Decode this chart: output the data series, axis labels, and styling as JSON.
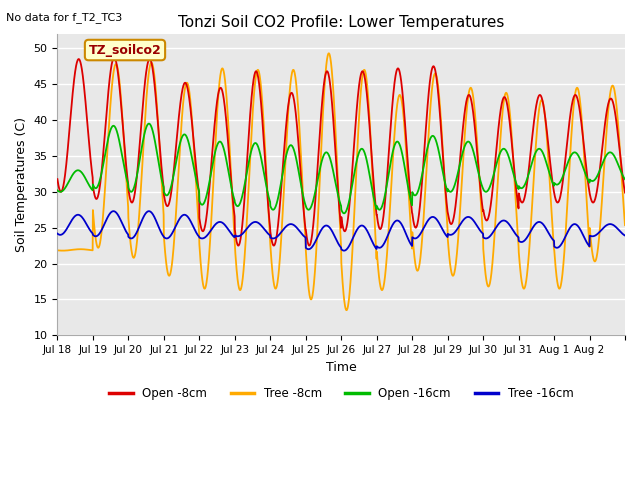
{
  "title": "Tonzi Soil CO2 Profile: Lower Temperatures",
  "subtitle": "No data for f_T2_TC3",
  "xlabel": "Time",
  "ylabel": "Soil Temperatures (C)",
  "ylim": [
    10,
    52
  ],
  "yticks": [
    10,
    15,
    20,
    25,
    30,
    35,
    40,
    45,
    50
  ],
  "legend_label": "TZ_soilco2",
  "series_labels": [
    "Open -8cm",
    "Tree -8cm",
    "Open -16cm",
    "Tree -16cm"
  ],
  "series_colors": [
    "#dd0000",
    "#ffaa00",
    "#00bb00",
    "#0000cc"
  ],
  "bg_color": "#ffffff",
  "plot_bg_color": "#e8e8e8",
  "grid_color": "#ffffff",
  "n_days": 16,
  "xtick_labels": [
    "Jul 18",
    "Jul 19",
    "Jul 20",
    "Jul 21",
    "Jul 22",
    "Jul 23",
    "Jul 24",
    "Jul 25",
    "Jul 26",
    "Jul 27",
    "Jul 28",
    "Jul 29",
    "Jul 30",
    "Jul 31",
    "Aug 1",
    "Aug 2"
  ],
  "open8_peaks": [
    48.5,
    48.7,
    48.5,
    45.2,
    44.5,
    46.8,
    43.8,
    46.8,
    46.8,
    47.2,
    47.5,
    43.5,
    43.2,
    43.5,
    43.5,
    43.0
  ],
  "open8_troughs": [
    30.0,
    29.0,
    28.5,
    28.0,
    24.5,
    22.5,
    22.5,
    22.5,
    24.5,
    24.8,
    25.0,
    25.5,
    26.0,
    28.5,
    28.5,
    28.5
  ],
  "tree8_peaks": [
    22.0,
    47.8,
    48.0,
    45.2,
    47.2,
    47.0,
    47.0,
    49.3,
    47.0,
    43.5,
    46.5,
    44.5,
    43.8,
    42.8,
    44.5,
    44.8
  ],
  "tree8_troughs": [
    21.8,
    22.2,
    20.8,
    18.3,
    16.5,
    16.3,
    16.5,
    15.0,
    13.5,
    16.3,
    19.0,
    18.3,
    16.8,
    16.5,
    16.5,
    20.3
  ],
  "open16_peaks": [
    33.0,
    39.2,
    39.5,
    38.0,
    37.0,
    36.8,
    36.5,
    35.5,
    36.0,
    37.0,
    37.8,
    37.0,
    36.0,
    36.0,
    35.5,
    35.5
  ],
  "open16_troughs": [
    30.0,
    30.5,
    30.0,
    29.5,
    28.2,
    28.0,
    27.5,
    27.5,
    27.0,
    27.5,
    29.5,
    30.0,
    30.0,
    30.5,
    31.0,
    31.5
  ],
  "tree16_peaks": [
    26.8,
    27.3,
    27.3,
    26.8,
    25.8,
    25.8,
    25.5,
    25.3,
    25.3,
    26.0,
    26.5,
    26.5,
    26.0,
    25.8,
    25.5,
    25.5
  ],
  "tree16_troughs": [
    24.0,
    23.8,
    23.5,
    23.5,
    23.5,
    23.8,
    23.5,
    22.0,
    21.8,
    22.2,
    23.5,
    24.0,
    23.5,
    23.0,
    22.2,
    23.8
  ]
}
